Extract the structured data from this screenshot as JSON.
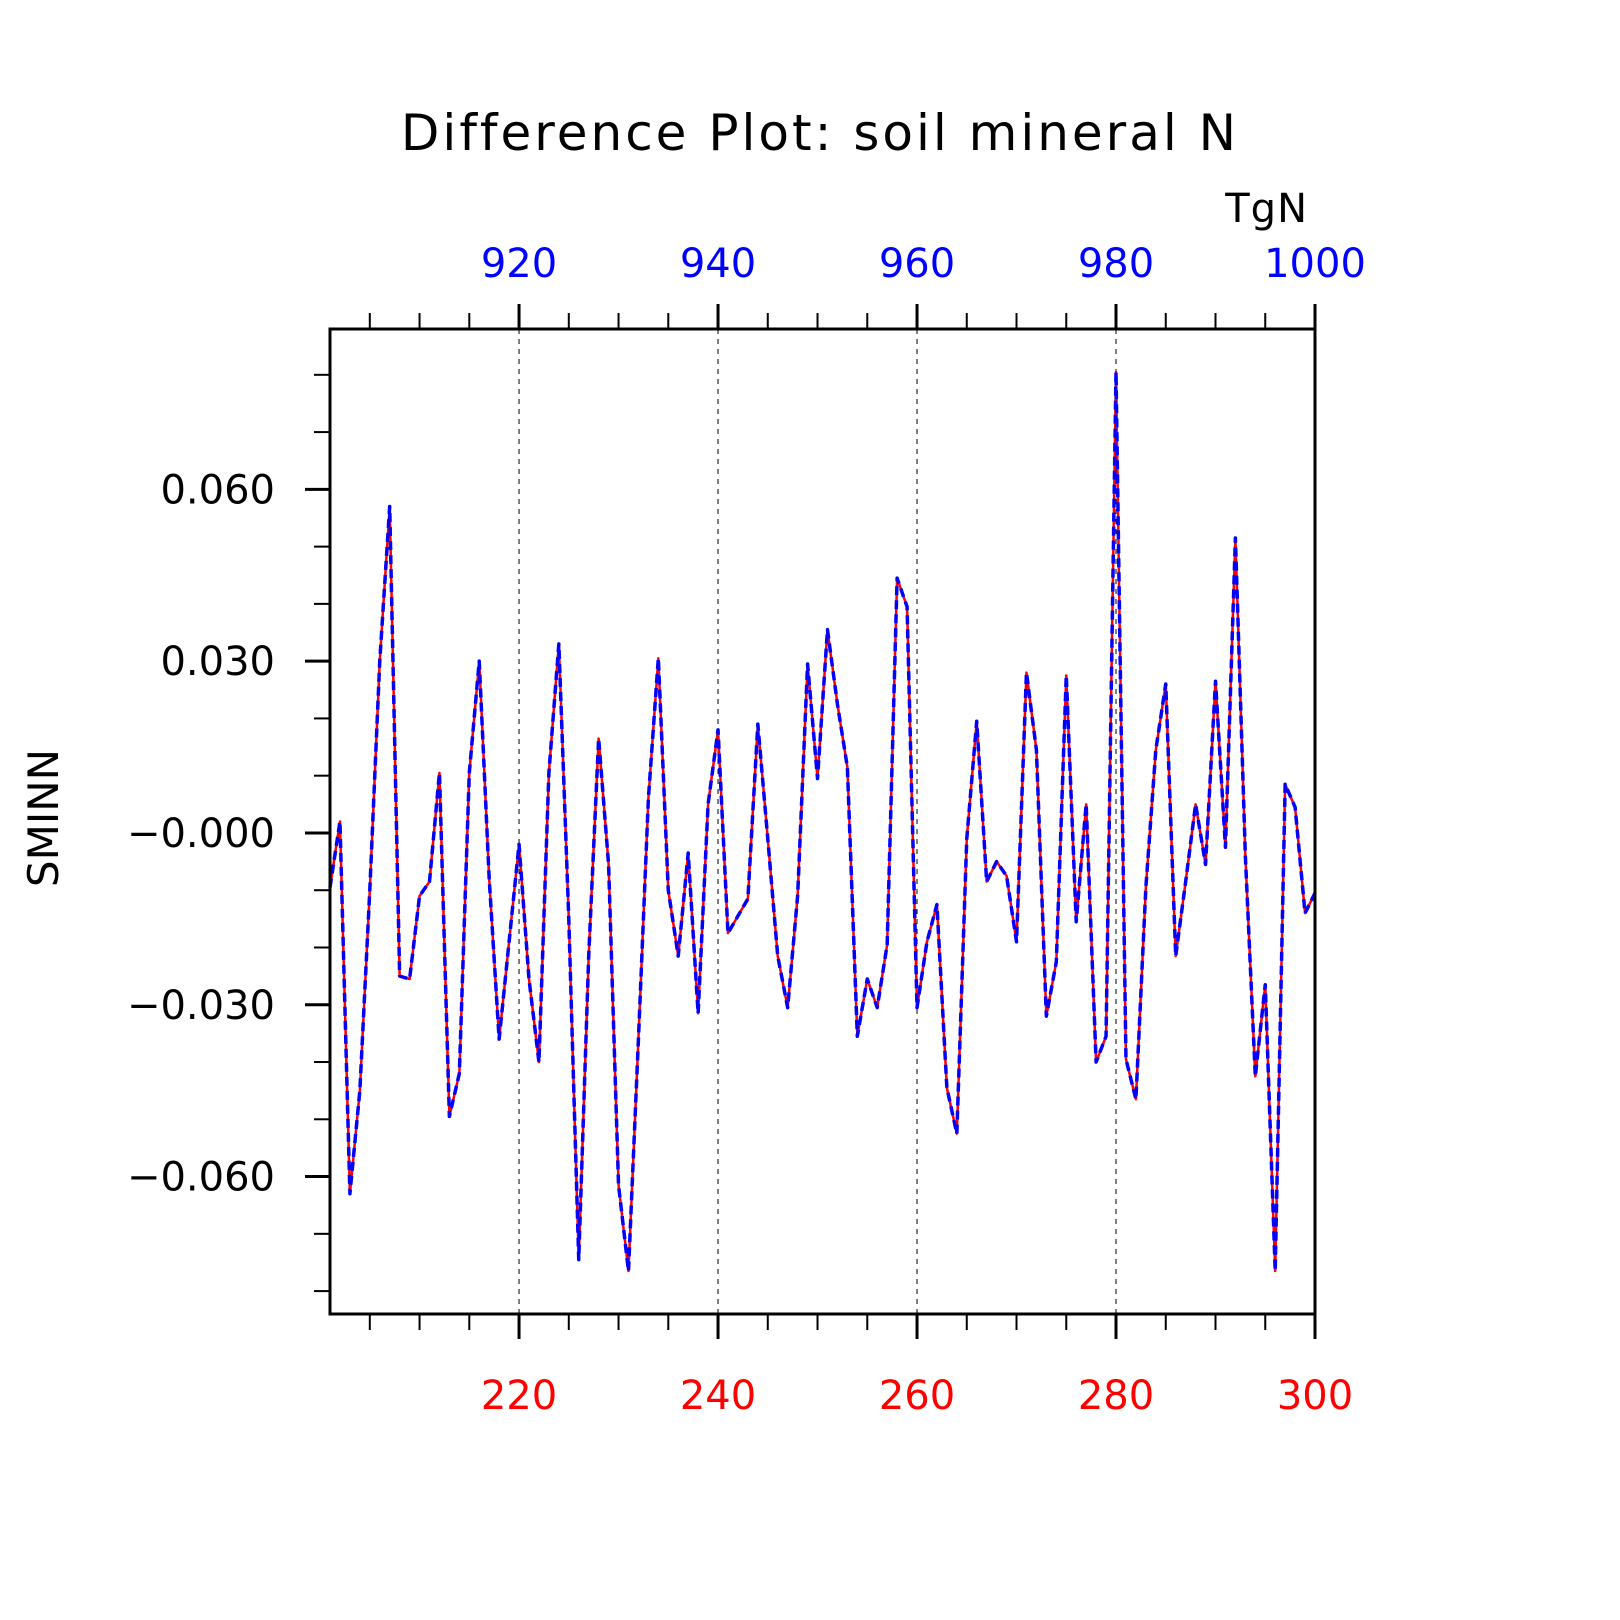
{
  "chart_data": {
    "type": "line",
    "title": "Difference Plot: soil mineral N",
    "units": "TgN",
    "ylabel": "SMINN",
    "xlabel": "",
    "colors": {
      "bottom_axis": "#ff0000",
      "top_axis": "#0000ff",
      "axes": "#000000",
      "grid": "#000000"
    },
    "x_bottom": {
      "lim": [
        201,
        300
      ],
      "tick_labels": [
        "220",
        "240",
        "260",
        "280",
        "300"
      ],
      "tick_values": [
        220,
        240,
        260,
        280,
        300
      ],
      "minor_step": 5
    },
    "x_top": {
      "lim": [
        901,
        1000
      ],
      "tick_labels": [
        "920",
        "940",
        "960",
        "980",
        "1000"
      ],
      "tick_values": [
        920,
        940,
        960,
        980,
        1000
      ],
      "minor_step": 5
    },
    "y": {
      "lim": [
        -0.084,
        0.088
      ],
      "tick_labels": [
        "0.060",
        "0.030",
        "−0.000",
        "−0.030",
        "−0.060"
      ],
      "tick_values": [
        0.06,
        0.03,
        0.0,
        -0.03,
        -0.06
      ],
      "minor_step": 0.01
    },
    "grid": "vertical dashed at major x ticks",
    "series": [
      {
        "style": "solid",
        "color": "#ff0000",
        "x_axis": "bottom",
        "x_start": 201,
        "values": [
          -0.0095,
          0.002,
          -0.063,
          -0.045,
          -0.01,
          0.03,
          0.057,
          -0.025,
          -0.0255,
          -0.011,
          -0.0085,
          0.0105,
          -0.0495,
          -0.042,
          0.0105,
          0.03,
          -0.008,
          -0.036,
          -0.019,
          -0.002,
          -0.0255,
          -0.04,
          0.0105,
          0.033,
          -0.015,
          -0.0745,
          -0.0215,
          0.0165,
          -0.0055,
          -0.0615,
          -0.0765,
          -0.036,
          0.006,
          0.0305,
          -0.01,
          -0.0215,
          -0.0035,
          -0.0315,
          0.005,
          0.018,
          -0.0175,
          -0.0145,
          -0.0115,
          0.019,
          -0.001,
          -0.0215,
          -0.0305,
          -0.011,
          0.0295,
          0.0095,
          0.0355,
          0.0225,
          0.0115,
          -0.0355,
          -0.0255,
          -0.0305,
          -0.0195,
          0.0445,
          0.0395,
          -0.0305,
          -0.019,
          -0.0125,
          -0.0445,
          -0.0525,
          -0.001,
          0.0195,
          -0.0085,
          -0.005,
          -0.0075,
          -0.019,
          0.028,
          0.0145,
          -0.032,
          -0.0225,
          0.0275,
          -0.0155,
          0.005,
          -0.04,
          -0.0355,
          0.0805,
          -0.0395,
          -0.0465,
          -0.0095,
          0.0145,
          0.026,
          -0.0215,
          -0.0085,
          0.005,
          -0.0055,
          0.0265,
          -0.0025,
          0.0515,
          -0.004,
          -0.0425,
          -0.0265,
          -0.0765,
          0.0085,
          0.0045,
          -0.014,
          -0.0105
        ]
      },
      {
        "style": "dashed",
        "color": "#0000ff",
        "x_axis": "top",
        "x_start": 901,
        "values": [
          -0.0095,
          0.002,
          -0.063,
          -0.045,
          -0.01,
          0.03,
          0.057,
          -0.025,
          -0.0255,
          -0.011,
          -0.0085,
          0.0105,
          -0.0495,
          -0.042,
          0.0105,
          0.03,
          -0.008,
          -0.036,
          -0.019,
          -0.002,
          -0.0255,
          -0.04,
          0.0105,
          0.033,
          -0.015,
          -0.0745,
          -0.0215,
          0.0165,
          -0.0055,
          -0.0615,
          -0.0765,
          -0.036,
          0.006,
          0.0305,
          -0.01,
          -0.0215,
          -0.0035,
          -0.0315,
          0.005,
          0.018,
          -0.0175,
          -0.0145,
          -0.0115,
          0.019,
          -0.001,
          -0.0215,
          -0.0305,
          -0.011,
          0.0295,
          0.0095,
          0.0355,
          0.0225,
          0.0115,
          -0.0355,
          -0.0255,
          -0.0305,
          -0.0195,
          0.0445,
          0.0395,
          -0.0305,
          -0.019,
          -0.0125,
          -0.0445,
          -0.0525,
          -0.001,
          0.0195,
          -0.0085,
          -0.005,
          -0.0075,
          -0.019,
          0.028,
          0.0145,
          -0.032,
          -0.0225,
          0.0275,
          -0.0155,
          0.005,
          -0.04,
          -0.0355,
          0.0805,
          -0.0395,
          -0.0465,
          -0.0095,
          0.0145,
          0.026,
          -0.0215,
          -0.0085,
          0.005,
          -0.0055,
          0.0265,
          -0.0025,
          0.0515,
          -0.004,
          -0.0425,
          -0.0265,
          -0.0765,
          0.0085,
          0.0045,
          -0.014,
          -0.0105
        ]
      }
    ]
  }
}
